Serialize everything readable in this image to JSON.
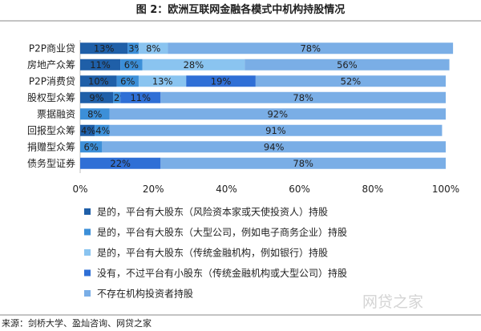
{
  "figure_title": "图 2：欧洲互联网金融各模式中机构持股情况",
  "source": "来源：剑桥大学、盈灿咨询、网贷之家",
  "watermark": "网贷之家",
  "chart_data": {
    "type": "bar",
    "orientation": "horizontal",
    "stacked": "percent",
    "categories": [
      "P2P商业贷",
      "房地产众筹",
      "P2P消费贷",
      "股权型众筹",
      "票据融资",
      "回报型众筹",
      "捐赠型众筹",
      "债务型证券"
    ],
    "series": [
      {
        "name": "是的，平台有大股东（风险资本家或天使投资人）持股",
        "color": "#1f5fa8",
        "values": [
          13,
          11,
          10,
          9,
          0,
          4,
          0,
          0
        ],
        "labels": [
          "13%",
          "11%",
          "10%",
          "9%",
          "",
          "4%",
          "",
          ""
        ]
      },
      {
        "name": "是的，平台有大股东（大型公司，例如电子商务企业）持股",
        "color": "#3c8fd8",
        "values": [
          3,
          6,
          6,
          2,
          8,
          4,
          6,
          0
        ],
        "labels": [
          "3%",
          "6%",
          "6%",
          "2%",
          "8%",
          "4%",
          "6%",
          ""
        ]
      },
      {
        "name": "是的，平台有大股东（传统金融机构，例如银行）持股",
        "color": "#8ac4f0",
        "values": [
          8,
          28,
          13,
          0,
          0,
          0,
          0,
          0
        ],
        "labels": [
          "8%",
          "28%",
          "13%",
          "",
          "",
          "",
          "",
          ""
        ]
      },
      {
        "name": "没有，不过平台有小股东（传统金融机构或大型公司）持股",
        "color": "#2f6fd6",
        "values": [
          0,
          0,
          19,
          11,
          0,
          0,
          0,
          22
        ],
        "labels": [
          "",
          "",
          "19%",
          "11%",
          "",
          "",
          "",
          "22%"
        ]
      },
      {
        "name": "不存在机构投资者持股",
        "color": "#7aaee6",
        "values": [
          78,
          56,
          52,
          78,
          92,
          91,
          94,
          78
        ],
        "labels": [
          "78%",
          "56%",
          "52%",
          "78%",
          "92%",
          "91%",
          "94%",
          "78%"
        ]
      }
    ],
    "xlim": [
      0,
      100
    ],
    "xticks": [
      "0%",
      "20%",
      "40%",
      "60%",
      "80%",
      "100%"
    ],
    "grid": false,
    "legend_position": "bottom"
  }
}
